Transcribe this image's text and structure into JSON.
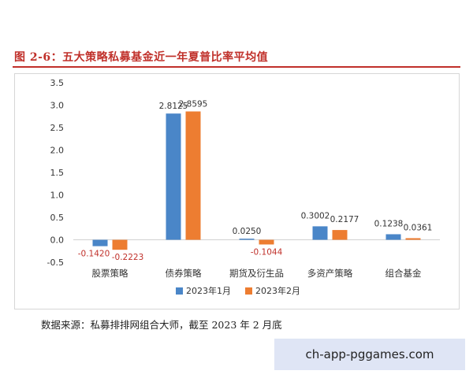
{
  "figure": {
    "title": "图 2-6：五大策略私募基金近一年夏普比率平均值",
    "source": "数据来源：私募排排网组合大师，截至 2023 年 2 月底"
  },
  "watermark": {
    "text": "ch-app-pggames.com"
  },
  "colors": {
    "series1": "#4a86c8",
    "series2": "#ed7d31",
    "negative_label": "#c0302a",
    "title": "#c0302a"
  },
  "chart_data": {
    "type": "bar",
    "categories": [
      "股票策略",
      "债券策略",
      "期货及衍生品",
      "多资产策略",
      "组合基金"
    ],
    "series": [
      {
        "name": "2023年1月",
        "values": [
          -0.142,
          2.8125,
          0.025,
          0.3002,
          0.1238
        ],
        "labels": [
          "-0.1420",
          "2.8125",
          "0.0250",
          "0.3002",
          "0.1238"
        ]
      },
      {
        "name": "2023年2月",
        "values": [
          -0.2223,
          2.8595,
          -0.1044,
          0.2177,
          0.0361
        ],
        "labels": [
          "-0.2223",
          "2.8595",
          "-0.1044",
          "0.2177",
          "0.0361"
        ]
      }
    ],
    "ylim": [
      -0.5,
      3.5
    ],
    "yticks": [
      -0.5,
      0.0,
      0.5,
      1.0,
      1.5,
      2.0,
      2.5,
      3.0,
      3.5
    ],
    "ytick_labels": [
      "-0.5",
      "0.0",
      "0.5",
      "1.0",
      "1.5",
      "2.0",
      "2.5",
      "3.0",
      "3.5"
    ],
    "grid": false,
    "legend": "bottom-center"
  }
}
